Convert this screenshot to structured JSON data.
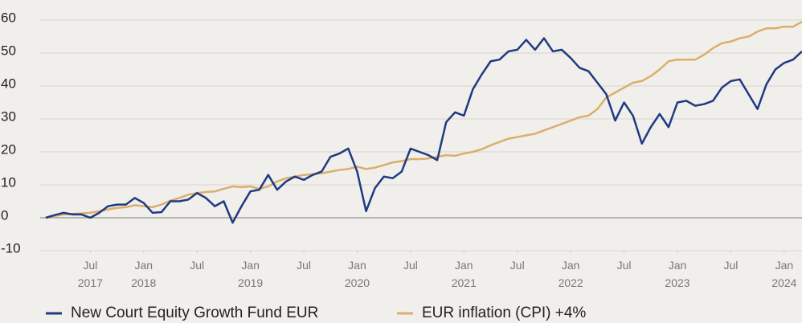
{
  "chart_data": {
    "type": "line",
    "x": [
      "2017-02",
      "2017-03",
      "2017-04",
      "2017-05",
      "2017-06",
      "2017-07",
      "2017-08",
      "2017-09",
      "2017-10",
      "2017-11",
      "2017-12",
      "2018-01",
      "2018-02",
      "2018-03",
      "2018-04",
      "2018-05",
      "2018-06",
      "2018-07",
      "2018-08",
      "2018-09",
      "2018-10",
      "2018-11",
      "2018-12",
      "2019-01",
      "2019-02",
      "2019-03",
      "2019-04",
      "2019-05",
      "2019-06",
      "2019-07",
      "2019-08",
      "2019-09",
      "2019-10",
      "2019-11",
      "2019-12",
      "2020-01",
      "2020-02",
      "2020-03",
      "2020-04",
      "2020-05",
      "2020-06",
      "2020-07",
      "2020-08",
      "2020-09",
      "2020-10",
      "2020-11",
      "2020-12",
      "2021-01",
      "2021-02",
      "2021-03",
      "2021-04",
      "2021-05",
      "2021-06",
      "2021-07",
      "2021-08",
      "2021-09",
      "2021-10",
      "2021-11",
      "2021-12",
      "2022-01",
      "2022-02",
      "2022-03",
      "2022-04",
      "2022-05",
      "2022-06",
      "2022-07",
      "2022-08",
      "2022-09",
      "2022-10",
      "2022-11",
      "2022-12",
      "2023-01",
      "2023-02",
      "2023-03",
      "2023-04",
      "2023-05",
      "2023-06",
      "2023-07",
      "2023-08",
      "2023-09",
      "2023-10",
      "2023-11",
      "2023-12",
      "2024-01",
      "2024-02",
      "2024-03"
    ],
    "series": [
      {
        "name": "New Court Equity Growth Fund EUR",
        "color": "#1f3a80",
        "values": [
          0,
          0.8,
          1.5,
          1,
          1,
          0,
          1.5,
          3.5,
          4,
          4,
          6,
          4.5,
          1.5,
          1.7,
          5,
          5,
          5.5,
          7.5,
          6,
          3.5,
          5,
          -1.5,
          3.5,
          8,
          8.5,
          13,
          8.5,
          11,
          12.5,
          11.5,
          13,
          14,
          18.5,
          19.5,
          21,
          14,
          2,
          9,
          12.5,
          12,
          14,
          21,
          20,
          19,
          17.5,
          29,
          32,
          31,
          39,
          43.5,
          47.5,
          48,
          50.5,
          51,
          54,
          51,
          54.5,
          50.5,
          51,
          48.5,
          45.5,
          44.5,
          41,
          37.5,
          29.5,
          35,
          31,
          22.5,
          27.5,
          31.5,
          27.5,
          35,
          35.5,
          34,
          34.5,
          35.5,
          39.5,
          41.5,
          42,
          37.5,
          33,
          40.5,
          45,
          47,
          48,
          50.5
        ]
      },
      {
        "name": "EUR inflation (CPI) +4%",
        "color": "#dbae6c",
        "values": [
          0,
          0.5,
          1,
          1.2,
          1.3,
          1.5,
          2,
          2.5,
          3,
          3.2,
          3.8,
          3.5,
          3.2,
          4,
          5.2,
          6,
          7,
          7.5,
          7.8,
          8,
          8.8,
          9.5,
          9.3,
          9.5,
          8.8,
          9.5,
          11,
          12,
          12.5,
          13,
          13.2,
          13.5,
          14,
          14.5,
          14.8,
          15.5,
          14.8,
          15.2,
          16,
          16.8,
          17.2,
          17.8,
          17.8,
          18,
          18.5,
          19,
          18.8,
          19.5,
          20,
          20.8,
          22,
          23,
          24,
          24.5,
          25,
          25.5,
          26.5,
          27.5,
          28.5,
          29.5,
          30.5,
          31,
          33,
          36.5,
          38,
          39.5,
          41,
          41.5,
          43,
          45,
          47.5,
          48,
          48,
          48,
          49.5,
          51.5,
          53,
          53.5,
          54.5,
          55,
          56.5,
          57.5,
          57.5,
          58,
          58,
          59.5
        ]
      }
    ],
    "xlim": [
      "2017-02",
      "2024-03"
    ],
    "xticks": [
      {
        "value": "2017-07",
        "label": "Jul 2017"
      },
      {
        "value": "2018-01",
        "label": "Jan 2018"
      },
      {
        "value": "2018-07",
        "label": "Jul"
      },
      {
        "value": "2019-01",
        "label": "Jan 2019"
      },
      {
        "value": "2019-07",
        "label": "Jul"
      },
      {
        "value": "2020-01",
        "label": "Jan 2020"
      },
      {
        "value": "2020-07",
        "label": "Jul"
      },
      {
        "value": "2021-01",
        "label": "Jan 2021"
      },
      {
        "value": "2021-07",
        "label": "Jul"
      },
      {
        "value": "2022-01",
        "label": "Jan 2022"
      },
      {
        "value": "2022-07",
        "label": "Jul"
      },
      {
        "value": "2023-01",
        "label": "Jan 2023"
      },
      {
        "value": "2023-07",
        "label": "Jul"
      },
      {
        "value": "2024-01",
        "label": "Jan 2024"
      }
    ],
    "ylim": [
      -10,
      60
    ],
    "yticks": [
      -10,
      0,
      10,
      20,
      30,
      40,
      50,
      60
    ],
    "grid": true,
    "legend": "bottom"
  }
}
